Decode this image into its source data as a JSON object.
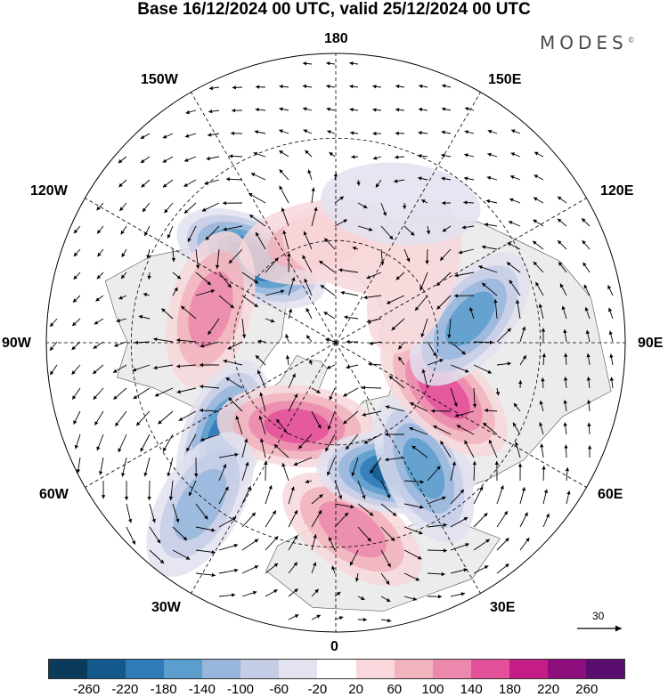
{
  "title": "Base 16/12/2024 00 UTC, valid 25/12/2024 00 UTC",
  "brand": {
    "name": "MODES",
    "mark": "©"
  },
  "longitude_labels": {
    "top": "180",
    "bottom": "0",
    "left": "90W",
    "right": "90E",
    "upper_left": "150W",
    "upper_right": "150E",
    "mid_upper_left": "120W",
    "mid_upper_right": "120E",
    "mid_lower_left": "60W",
    "mid_lower_right": "60E",
    "lower_left": "30W",
    "lower_right": "30E"
  },
  "reference_vector": {
    "label": "30"
  },
  "colorbar": {
    "colors": [
      "#0b3a5a",
      "#14598c",
      "#2e7bb8",
      "#5b9dcc",
      "#96b6dc",
      "#c4cce6",
      "#e2e2f0",
      "#ffffff",
      "#f8d8dc",
      "#f1b3bd",
      "#ec88ad",
      "#e3509a",
      "#c41e86",
      "#8e0e7d",
      "#5a0f6e"
    ],
    "ticks": [
      "-260",
      "-220",
      "-180",
      "-140",
      "-100",
      "-60",
      "-20",
      "20",
      "60",
      "100",
      "140",
      "180",
      "220",
      "260"
    ]
  },
  "anomaly_centers": [
    {
      "lon": -135,
      "lat": 55,
      "value": -240
    },
    {
      "lon": -105,
      "lat": 52,
      "value": 150
    },
    {
      "lon": -50,
      "lat": 47,
      "value": -220
    },
    {
      "lon": -25,
      "lat": 63,
      "value": 180
    },
    {
      "lon": -40,
      "lat": 28,
      "value": -130
    },
    {
      "lon": 5,
      "lat": 35,
      "value": 150
    },
    {
      "lon": 25,
      "lat": 48,
      "value": -240
    },
    {
      "lon": 35,
      "lat": 45,
      "value": -180
    },
    {
      "lon": 65,
      "lat": 55,
      "value": 190
    },
    {
      "lon": 100,
      "lat": 50,
      "value": -180
    },
    {
      "lon": -170,
      "lat": 60,
      "value": 80
    },
    {
      "lon": 165,
      "lat": 62,
      "value": 70
    },
    {
      "lon": 130,
      "lat": 60,
      "value": 60
    },
    {
      "lon": 155,
      "lat": 45,
      "value": -40
    }
  ],
  "colors": {
    "land_fill": "#ececec",
    "coast": "#555555",
    "grid": "#000000"
  }
}
